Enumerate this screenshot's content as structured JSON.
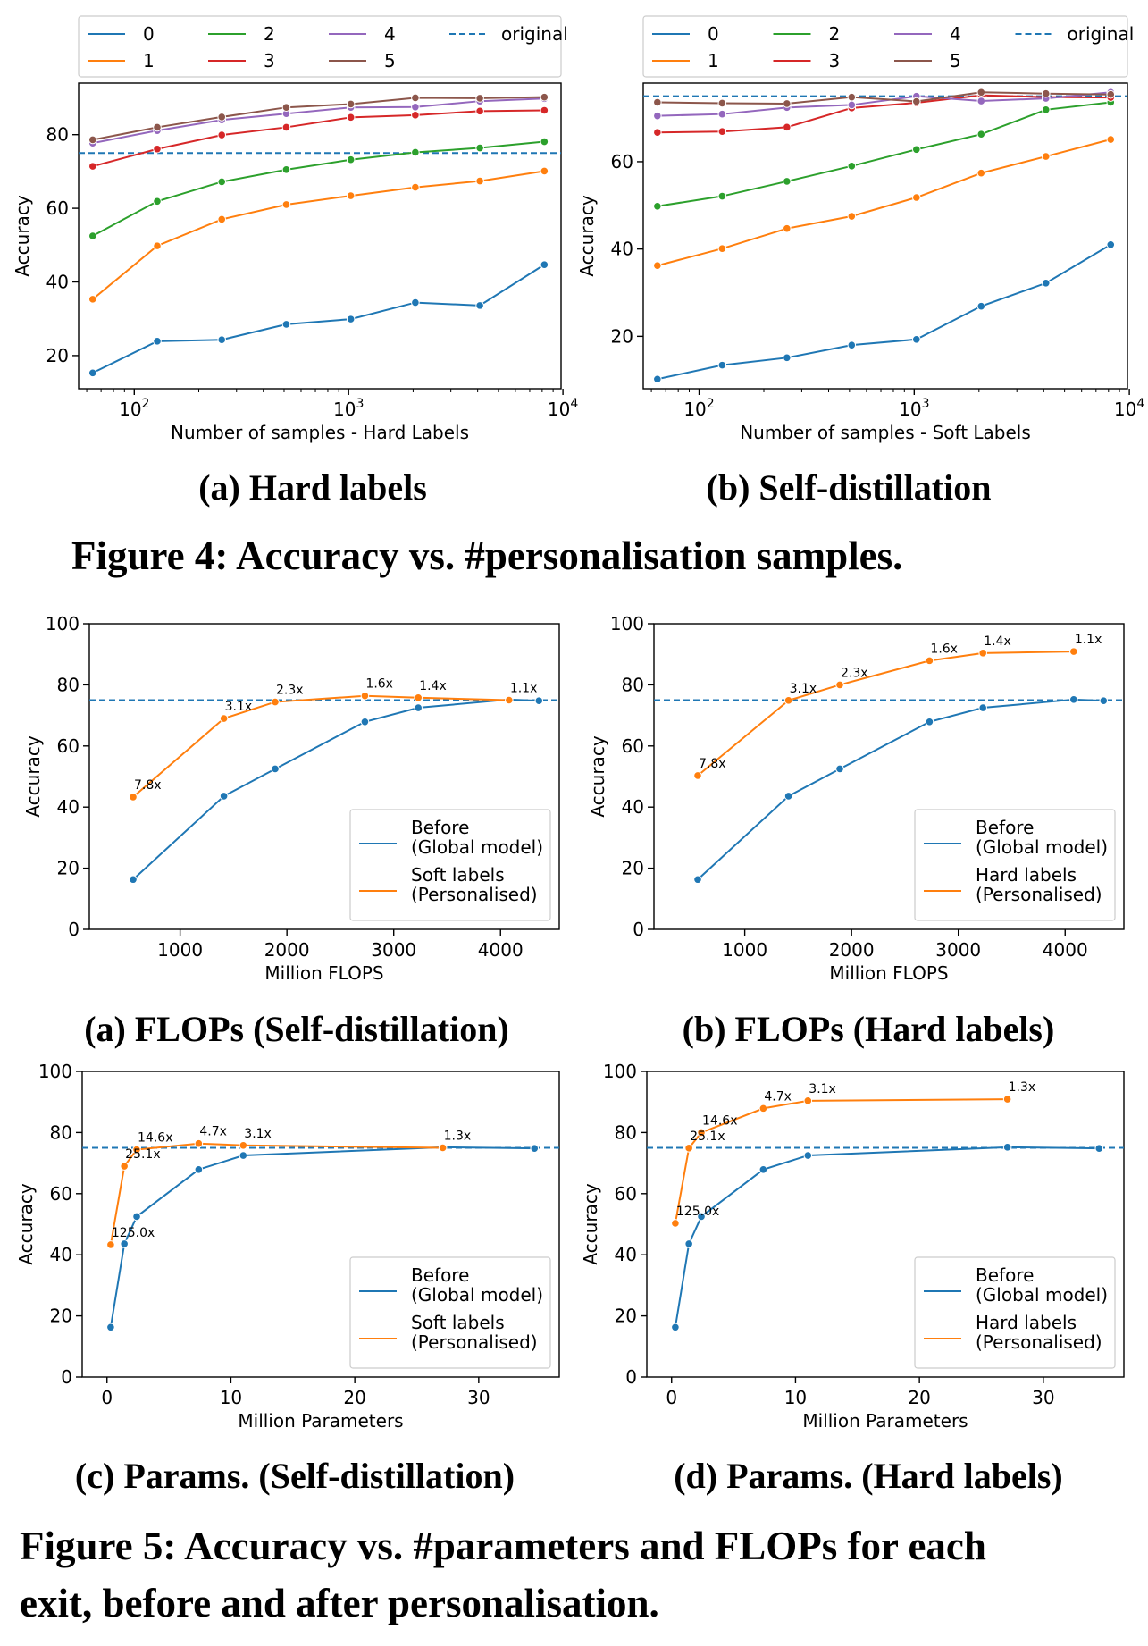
{
  "captions": {
    "fig4_a": "(a) Hard labels",
    "fig4_b": "(b) Self-distillation",
    "fig4": "Figure 4: Accuracy vs. #personalisation samples.",
    "fig5_a": "(a) FLOPs (Self-distillation)",
    "fig5_b": "(b) FLOPs (Hard labels)",
    "fig5_c": "(c) Params. (Self-distillation)",
    "fig5_d": "(d) Params. (Hard labels)",
    "fig5_line1": "Figure 5: Accuracy vs. #parameters and FLOPs for each",
    "fig5_line2": "exit, before and after personalisation."
  },
  "colors": {
    "c0": "#1f77b4",
    "c1": "#ff7f0e",
    "c2": "#2ca02c",
    "c3": "#d62728",
    "c4": "#9467bd",
    "c5": "#8c564b"
  },
  "chart_data": [
    {
      "id": "f4a",
      "type": "line",
      "xscale": "log",
      "xlabel": "Number of samples - Hard Labels",
      "ylabel": "Accuracy",
      "xlim": [
        55,
        9800
      ],
      "ylim": [
        11,
        94
      ],
      "yticks": [
        20,
        40,
        60,
        80
      ],
      "xticks": [
        {
          "v": 100,
          "base": "10",
          "exp": "2"
        },
        {
          "v": 1000,
          "base": "10",
          "exp": "3"
        },
        {
          "v": 10000,
          "base": "10",
          "exp": "4"
        }
      ],
      "x": [
        64,
        128,
        256,
        512,
        1024,
        2048,
        4096,
        8192
      ],
      "reference": {
        "name": "original",
        "y": 75
      },
      "legend": "top-outside",
      "series": [
        {
          "name": "0",
          "color": "#1f77b4",
          "values": [
            15.3,
            23.9,
            24.3,
            28.5,
            29.9,
            34.4,
            33.6,
            44.7
          ]
        },
        {
          "name": "1",
          "color": "#ff7f0e",
          "values": [
            35.3,
            49.8,
            57.0,
            61.0,
            63.4,
            65.7,
            67.4,
            70.1
          ]
        },
        {
          "name": "2",
          "color": "#2ca02c",
          "values": [
            52.5,
            61.9,
            67.2,
            70.5,
            73.2,
            75.2,
            76.4,
            78.1
          ]
        },
        {
          "name": "3",
          "color": "#d62728",
          "values": [
            71.4,
            76.1,
            79.9,
            82.0,
            84.7,
            85.3,
            86.4,
            86.6
          ]
        },
        {
          "name": "4",
          "color": "#9467bd",
          "values": [
            77.7,
            81.1,
            84.0,
            85.7,
            87.4,
            87.5,
            89.1,
            89.8
          ]
        },
        {
          "name": "5",
          "color": "#8c564b",
          "values": [
            78.6,
            82.0,
            84.8,
            87.4,
            88.3,
            90.0,
            89.9,
            90.2
          ]
        }
      ]
    },
    {
      "id": "f4b",
      "type": "line",
      "xscale": "log",
      "xlabel": "Number of samples - Soft Labels",
      "ylabel": "Accuracy",
      "xlim": [
        55,
        9800
      ],
      "ylim": [
        8,
        78
      ],
      "yticks": [
        20,
        40,
        60
      ],
      "xticks": [
        {
          "v": 100,
          "base": "10",
          "exp": "2"
        },
        {
          "v": 1000,
          "base": "10",
          "exp": "3"
        },
        {
          "v": 10000,
          "base": "10",
          "exp": "4"
        }
      ],
      "x": [
        64,
        128,
        256,
        512,
        1024,
        2048,
        4096,
        8192
      ],
      "reference": {
        "name": "original",
        "y": 75
      },
      "legend": "top-outside",
      "series": [
        {
          "name": "0",
          "color": "#1f77b4",
          "values": [
            10.2,
            13.4,
            15.1,
            18.0,
            19.3,
            26.9,
            32.2,
            41.0
          ]
        },
        {
          "name": "1",
          "color": "#ff7f0e",
          "values": [
            36.2,
            40.1,
            44.7,
            47.5,
            51.8,
            57.4,
            61.2,
            65.1
          ]
        },
        {
          "name": "2",
          "color": "#2ca02c",
          "values": [
            49.8,
            52.1,
            55.5,
            59.0,
            62.8,
            66.3,
            71.9,
            73.6
          ]
        },
        {
          "name": "3",
          "color": "#d62728",
          "values": [
            66.7,
            66.9,
            67.9,
            72.3,
            73.5,
            75.2,
            74.8,
            74.7
          ]
        },
        {
          "name": "4",
          "color": "#9467bd",
          "values": [
            70.5,
            70.9,
            72.4,
            73.0,
            75.0,
            73.9,
            74.5,
            75.9
          ]
        },
        {
          "name": "5",
          "color": "#8c564b",
          "values": [
            73.6,
            73.4,
            73.3,
            74.8,
            73.8,
            75.9,
            75.6,
            75.4
          ]
        }
      ]
    },
    {
      "id": "f5a",
      "type": "line",
      "xlabel": "Million FLOPS",
      "ylabel": "Accuracy",
      "xlim": [
        150,
        4550
      ],
      "ylim": [
        0,
        100
      ],
      "xticks": [
        1000,
        2000,
        3000,
        4000
      ],
      "yticks": [
        0,
        20,
        40,
        60,
        80,
        100
      ],
      "reference": {
        "y": 75
      },
      "legend": "lower-right",
      "series": [
        {
          "name": "Before\n(Global model)",
          "color": "#1f77b4",
          "points": [
            [
              560,
              16.3
            ],
            [
              1410,
              43.6
            ],
            [
              1890,
              52.5
            ],
            [
              2730,
              67.9
            ],
            [
              3230,
              72.5
            ],
            [
              4080,
              75.2
            ],
            [
              4360,
              74.8
            ]
          ]
        },
        {
          "name": "Soft labels\n(Personalised)",
          "color": "#ff7f0e",
          "points": [
            [
              560,
              43.3
            ],
            [
              1410,
              69.0
            ],
            [
              1890,
              74.4
            ],
            [
              2730,
              76.4
            ],
            [
              3230,
              75.8
            ],
            [
              4080,
              75.0
            ]
          ],
          "labels": [
            "7.8x",
            "3.1x",
            "2.3x",
            "1.6x",
            "1.4x",
            "1.1x"
          ]
        }
      ]
    },
    {
      "id": "f5b",
      "type": "line",
      "xlabel": "Million FLOPS",
      "ylabel": "Accuracy",
      "xlim": [
        150,
        4550
      ],
      "ylim": [
        0,
        100
      ],
      "xticks": [
        1000,
        2000,
        3000,
        4000
      ],
      "yticks": [
        0,
        20,
        40,
        60,
        80,
        100
      ],
      "reference": {
        "y": 75
      },
      "legend": "lower-right",
      "series": [
        {
          "name": "Before\n(Global model)",
          "color": "#1f77b4",
          "points": [
            [
              560,
              16.3
            ],
            [
              1410,
              43.6
            ],
            [
              1890,
              52.5
            ],
            [
              2730,
              67.9
            ],
            [
              3230,
              72.5
            ],
            [
              4080,
              75.2
            ],
            [
              4360,
              74.8
            ]
          ]
        },
        {
          "name": "Hard labels\n(Personalised)",
          "color": "#ff7f0e",
          "points": [
            [
              560,
              50.3
            ],
            [
              1410,
              74.9
            ],
            [
              1890,
              80.0
            ],
            [
              2730,
              87.9
            ],
            [
              3230,
              90.4
            ],
            [
              4080,
              90.9
            ]
          ],
          "labels": [
            "7.8x",
            "3.1x",
            "2.3x",
            "1.6x",
            "1.4x",
            "1.1x"
          ]
        }
      ]
    },
    {
      "id": "f5c",
      "type": "line",
      "xlabel": "Million Parameters",
      "ylabel": "Accuracy",
      "xlim": [
        -2,
        36.5
      ],
      "ylim": [
        0,
        100
      ],
      "xticks": [
        0,
        10,
        20,
        30
      ],
      "yticks": [
        0,
        20,
        40,
        60,
        80,
        100
      ],
      "reference": {
        "y": 75
      },
      "legend": "lower-right",
      "series": [
        {
          "name": "Before\n(Global model)",
          "color": "#1f77b4",
          "points": [
            [
              0.3,
              16.3
            ],
            [
              1.4,
              43.6
            ],
            [
              2.4,
              52.5
            ],
            [
              7.4,
              67.9
            ],
            [
              11.0,
              72.5
            ],
            [
              27.1,
              75.2
            ],
            [
              34.5,
              74.8
            ]
          ]
        },
        {
          "name": "Soft labels\n(Personalised)",
          "color": "#ff7f0e",
          "points": [
            [
              0.3,
              43.3
            ],
            [
              1.4,
              69.0
            ],
            [
              2.4,
              74.4
            ],
            [
              7.4,
              76.4
            ],
            [
              11.0,
              75.8
            ],
            [
              27.1,
              75.0
            ]
          ],
          "labels": [
            "125.0x",
            "25.1x",
            "14.6x",
            "4.7x",
            "3.1x",
            "1.3x"
          ]
        }
      ]
    },
    {
      "id": "f5d",
      "type": "line",
      "xlabel": "Million Parameters",
      "ylabel": "Accuracy",
      "xlim": [
        -2,
        36.5
      ],
      "ylim": [
        0,
        100
      ],
      "xticks": [
        0,
        10,
        20,
        30
      ],
      "yticks": [
        0,
        20,
        40,
        60,
        80,
        100
      ],
      "reference": {
        "y": 75
      },
      "legend": "lower-right",
      "series": [
        {
          "name": "Before\n(Global model)",
          "color": "#1f77b4",
          "points": [
            [
              0.3,
              16.3
            ],
            [
              1.4,
              43.6
            ],
            [
              2.4,
              52.5
            ],
            [
              7.4,
              67.9
            ],
            [
              11.0,
              72.5
            ],
            [
              27.1,
              75.2
            ],
            [
              34.5,
              74.8
            ]
          ]
        },
        {
          "name": "Hard labels\n(Personalised)",
          "color": "#ff7f0e",
          "points": [
            [
              0.3,
              50.3
            ],
            [
              1.4,
              74.9
            ],
            [
              2.4,
              80.0
            ],
            [
              7.4,
              87.9
            ],
            [
              11.0,
              90.4
            ],
            [
              27.1,
              90.9
            ]
          ],
          "labels": [
            "125.0x",
            "25.1x",
            "14.6x",
            "4.7x",
            "3.1x",
            "1.3x"
          ]
        }
      ]
    }
  ]
}
